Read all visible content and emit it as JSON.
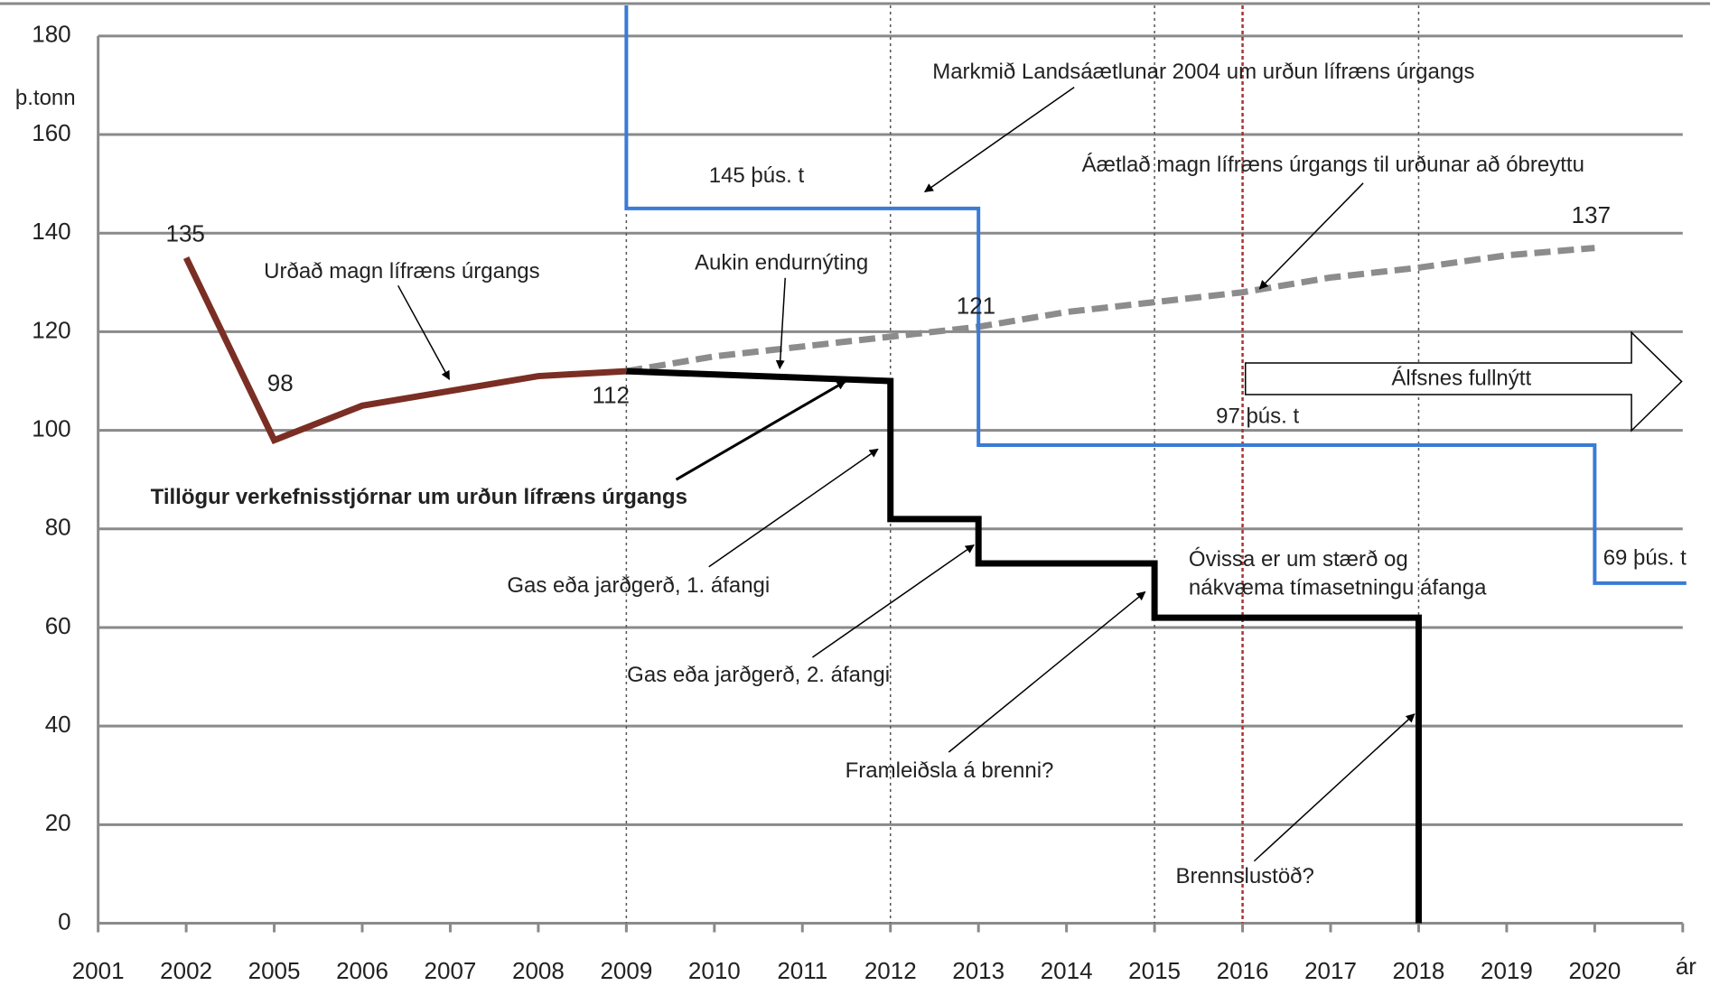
{
  "chart_data": {
    "type": "line",
    "y_label": "þ.tonn",
    "x_label": "ár",
    "categories": [
      "2001",
      "2002",
      "2005",
      "2006",
      "2007",
      "2008",
      "2009",
      "2010",
      "2011",
      "2012",
      "2013",
      "2014",
      "2015",
      "2016",
      "2017",
      "2018",
      "2019",
      "2020"
    ],
    "ylim": [
      0,
      180
    ],
    "yticks": [
      0,
      20,
      40,
      60,
      80,
      100,
      120,
      140,
      160,
      180
    ],
    "grid": true,
    "series": [
      {
        "name": "Urðað magn lífræns úrgangs",
        "color": "#7b2e24",
        "style": "solid",
        "x": [
          "2002",
          "2005",
          "2006",
          "2007",
          "2008",
          "2009"
        ],
        "values": [
          135,
          98,
          105,
          108,
          111,
          112
        ]
      },
      {
        "name": "Áætlað magn lífræns úrgangs til urðunar að óbreyttu",
        "color": "#8c8c8c",
        "style": "dashed",
        "x": [
          "2009",
          "2010",
          "2011",
          "2012",
          "2013",
          "2014",
          "2015",
          "2016",
          "2017",
          "2018",
          "2019",
          "2020"
        ],
        "values": [
          112,
          115,
          117,
          119,
          121,
          124,
          126,
          128,
          131,
          133,
          135.5,
          137
        ]
      },
      {
        "name": "Markmið Landsáætlunar 2004 um urðun lífræns úrgangs",
        "color": "#3a7bd5",
        "style": "step",
        "x": [
          "2009",
          "2013",
          "2020"
        ],
        "values": [
          145,
          97,
          69
        ],
        "value_labels": [
          "145 þús. t",
          "97 þús. t",
          "69 þús. t"
        ]
      },
      {
        "name": "Tillögur verkefnisstjórnar um urðun lífræns úrgangs",
        "color": "#000000",
        "style": "solid",
        "x": [
          "2009",
          "2012",
          "2012",
          "2013",
          "2013",
          "2015",
          "2015",
          "2018",
          "2018"
        ],
        "values": [
          112,
          110,
          82,
          82,
          73,
          73,
          62,
          62,
          0
        ]
      }
    ],
    "annotations": [
      "Aukin endurnýting",
      "Gas eða jarðgerð, 1. áfangi",
      "Gas eða jarðgerð, 2. áfangi",
      "Óvissa er um stærð og",
      "nákvæma tímasetningu áfanga",
      "Framleiðsla á brenni?",
      "Brennslustöð?",
      "Álfsnes fullnýtt"
    ]
  }
}
